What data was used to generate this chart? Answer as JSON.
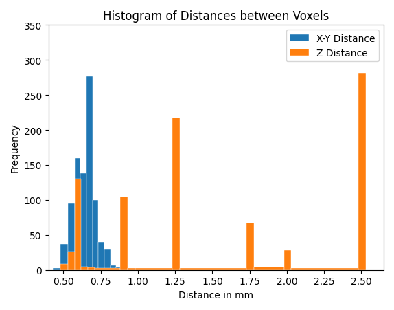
{
  "title": "Histogram of Distances between Voxels",
  "xlabel": "Distance in mm",
  "ylabel": "Frequency",
  "xlim": [
    0.4,
    2.65
  ],
  "ylim": [
    0,
    350
  ],
  "xy_color": "#1f77b4",
  "z_color": "#ff7f0e",
  "xy_label": "X-Y Distance",
  "z_label": "Z Distance",
  "xy_bin_edges": [
    0.43,
    0.48,
    0.53,
    0.575,
    0.615,
    0.655,
    0.695,
    0.735,
    0.775,
    0.815,
    0.855,
    0.895,
    0.935,
    0.975
  ],
  "xy_counts": [
    3,
    37,
    95,
    160,
    138,
    277,
    100,
    40,
    30,
    7,
    5,
    1,
    0
  ],
  "z_bin_edges": [
    0.48,
    0.53,
    0.575,
    0.62,
    0.665,
    0.71,
    0.88,
    0.93,
    0.98,
    1.23,
    1.28,
    1.73,
    1.78,
    1.98,
    2.03,
    2.48,
    2.53
  ],
  "z_counts": [
    9,
    26,
    130,
    5,
    4,
    3,
    105,
    3,
    3,
    218,
    3,
    67,
    5,
    28,
    3,
    282
  ]
}
